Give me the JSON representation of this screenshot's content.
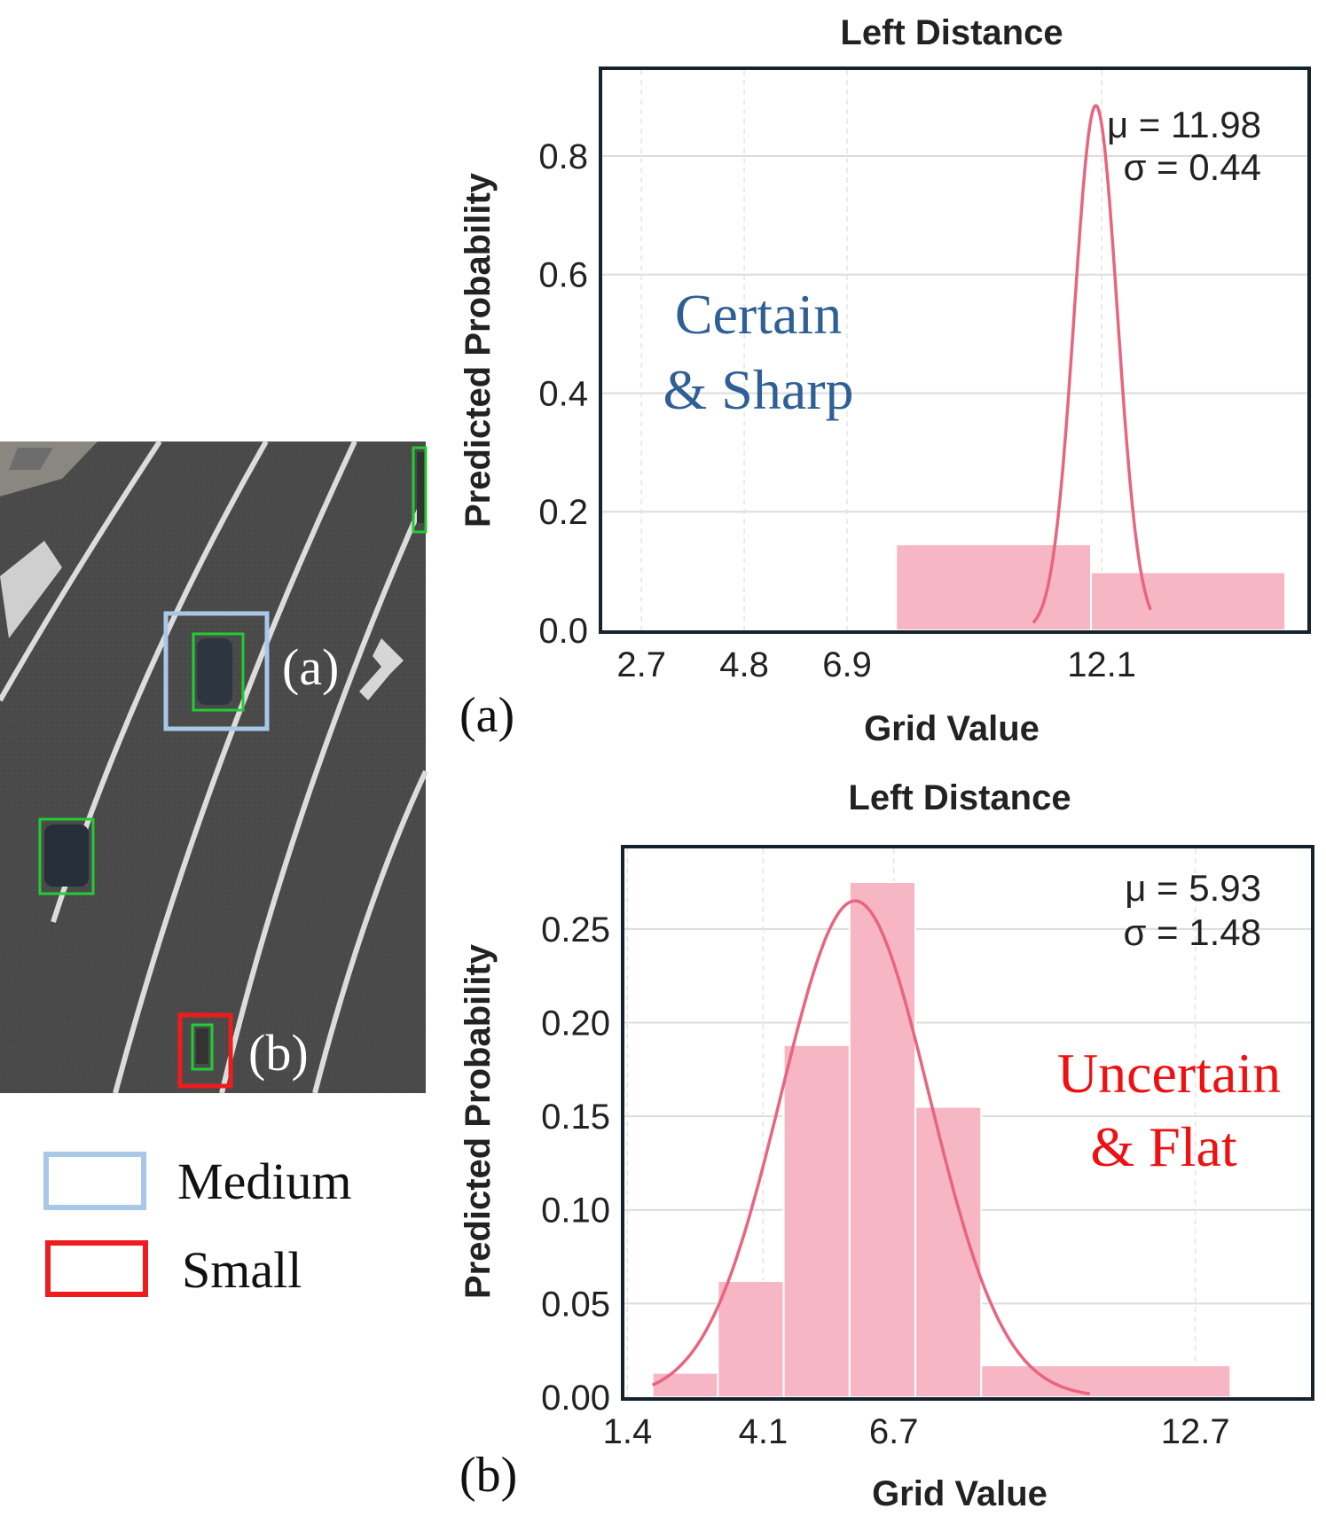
{
  "image_panel": {
    "label_a": "(a)",
    "label_b": "(b)",
    "legend": [
      {
        "label": "Medium",
        "color": "#a9c8e8"
      },
      {
        "label": "Small",
        "color": "#ee1c1c"
      }
    ]
  },
  "chart_data": [
    {
      "type": "bar",
      "panel_label": "(a)",
      "title": "Left Distance",
      "xlabel": "Grid Value",
      "ylabel": "Predicted Probability",
      "xlim": [
        1.9,
        16.3
      ],
      "ylim": [
        0.0,
        0.945
      ],
      "xticks": [
        2.7,
        4.8,
        6.9,
        12.1
      ],
      "xtick_labels": [
        "2.7",
        "4.8",
        "6.9",
        "12.1"
      ],
      "yticks": [
        0.0,
        0.2,
        0.4,
        0.6,
        0.8
      ],
      "ytick_labels": [
        "0.0",
        "0.2",
        "0.4",
        "0.6",
        "0.8"
      ],
      "bars": [
        {
          "x0": 7.9,
          "x1": 11.88,
          "value": 0.145
        },
        {
          "x0": 11.88,
          "x1": 15.85,
          "value": 0.098
        }
      ],
      "curve": {
        "mu": 11.98,
        "sigma": 0.44,
        "peak": 0.885,
        "x_range": [
          10.7,
          13.1
        ]
      },
      "stats": {
        "mu_text": "μ = 11.98",
        "sigma_text": "σ = 0.44"
      },
      "annotation": {
        "line1": "Certain",
        "line2": "& Sharp",
        "color": "#2e6096"
      },
      "bar_color": "#f7b6c3",
      "curve_color": "#e8657f"
    },
    {
      "type": "bar",
      "panel_label": "(b)",
      "title": "Left Distance",
      "xlabel": "Grid Value",
      "ylabel": "Predicted Probability",
      "xlim": [
        1.34,
        15.0
      ],
      "ylim": [
        0.0,
        0.293
      ],
      "xticks": [
        1.4,
        4.1,
        6.7,
        12.7
      ],
      "xtick_labels": [
        "1.4",
        "4.1",
        "6.7",
        "12.7"
      ],
      "yticks": [
        0.0,
        0.05,
        0.1,
        0.15,
        0.2,
        0.25
      ],
      "ytick_labels": [
        "0.00",
        "0.05",
        "0.10",
        "0.15",
        "0.20",
        "0.25"
      ],
      "bars": [
        {
          "x0": 1.9,
          "x1": 3.2,
          "value": 0.013
        },
        {
          "x0": 3.2,
          "x1": 4.51,
          "value": 0.062
        },
        {
          "x0": 4.51,
          "x1": 5.82,
          "value": 0.188
        },
        {
          "x0": 5.82,
          "x1": 7.13,
          "value": 0.275
        },
        {
          "x0": 7.13,
          "x1": 8.44,
          "value": 0.155
        },
        {
          "x0": 8.44,
          "x1": 13.4,
          "value": 0.017
        }
      ],
      "curve": {
        "mu": 5.93,
        "sigma": 1.48,
        "peak": 0.265,
        "x_range": [
          1.9,
          10.6
        ]
      },
      "stats": {
        "mu_text": "μ = 5.93",
        "sigma_text": "σ = 1.48"
      },
      "annotation": {
        "line1": "Uncertain",
        "line2": "& Flat",
        "color": "#ee1111"
      },
      "bar_color": "#f7b6c3",
      "curve_color": "#e8657f"
    }
  ]
}
